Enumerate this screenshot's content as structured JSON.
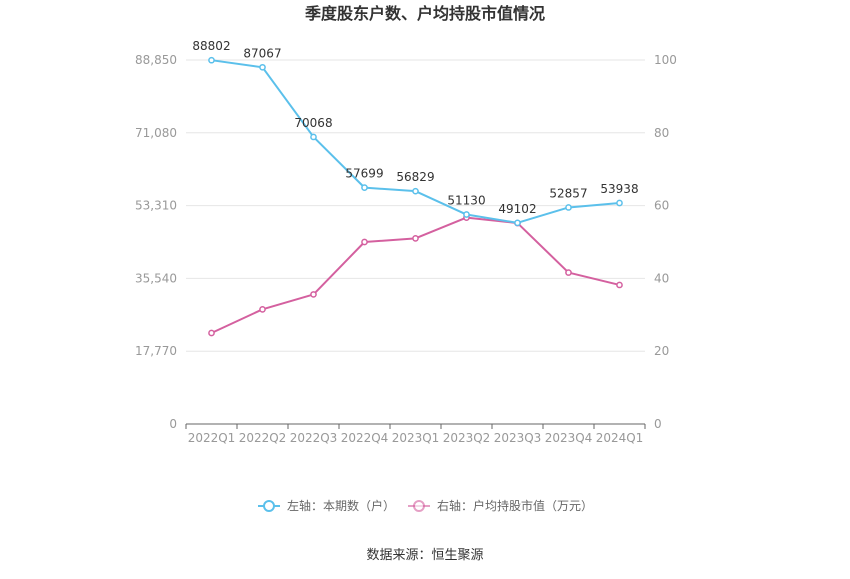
{
  "chart_data": {
    "type": "line",
    "title": "季度股东户数、户均持股市值情况",
    "categories": [
      "2022Q1",
      "2022Q2",
      "2022Q3",
      "2022Q4",
      "2023Q1",
      "2023Q2",
      "2023Q3",
      "2023Q4",
      "2024Q1"
    ],
    "left_axis": {
      "ticks": [
        "0",
        "17,770",
        "35,540",
        "53,310",
        "71,080",
        "88,850"
      ],
      "min": 0,
      "max": 88850
    },
    "right_axis": {
      "ticks": [
        "0",
        "20",
        "40",
        "60",
        "80",
        "100"
      ],
      "min": 0,
      "max": 100
    },
    "grid": true,
    "legend_position": "bottom",
    "series": [
      {
        "name": "左轴：本期数（户）",
        "axis": "left",
        "color": "#5bc0eb",
        "values": [
          88802,
          87067,
          70068,
          57699,
          56829,
          51130,
          49102,
          52857,
          53938
        ],
        "labels": [
          "88802",
          "87067",
          "70068",
          "57699",
          "56829",
          "51130",
          "49102",
          "52857",
          "53938"
        ]
      },
      {
        "name": "右轴：户均持股市值（万元）",
        "axis": "right",
        "color": "#d4609f",
        "values": [
          25.0,
          31.5,
          35.6,
          50.0,
          51.0,
          56.7,
          55.2,
          41.6,
          38.2
        ]
      }
    ],
    "source": "数据来源：恒生聚源"
  }
}
